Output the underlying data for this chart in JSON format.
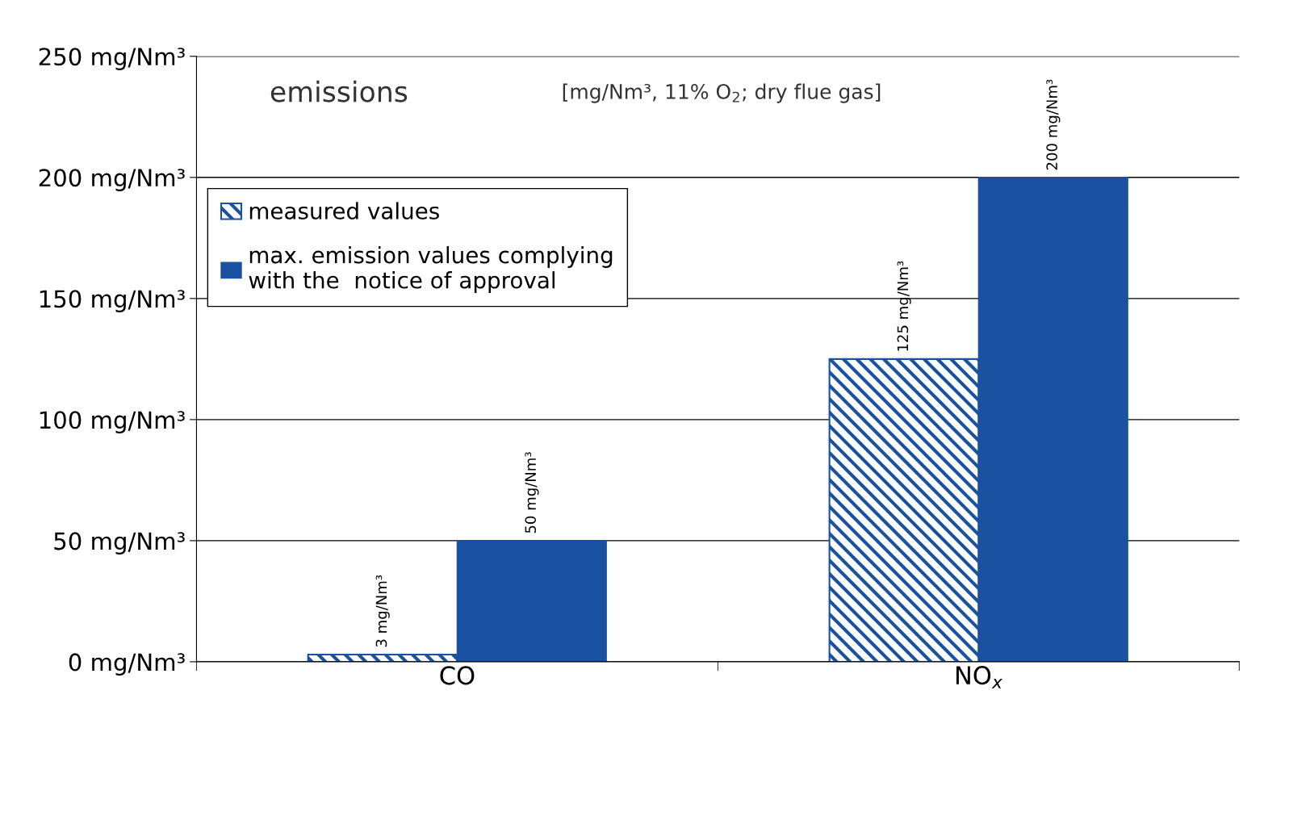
{
  "chart_data": {
    "type": "bar",
    "title": "emissions",
    "subtitle": "[mg/Nm³, 11% O$_{2}$; dry flue gas]",
    "categories": [
      "CO",
      "NO$_{x}$"
    ],
    "series": [
      {
        "name": "measured values",
        "color": "#1a51a0",
        "values": [
          3,
          125
        ],
        "value_labels": [
          "3 mg/Nm³",
          "125 mg/Nm³"
        ]
      },
      {
        "name": "max. emission values complying\nwith the  notice of approval",
        "color": "#1a51a0",
        "values": [
          50,
          200
        ],
        "value_labels": [
          "50 mg/Nm³",
          "200 mg/Nm³"
        ]
      }
    ],
    "ylim": [
      0,
      250
    ],
    "yticks": [
      {
        "value": 0,
        "label": "0 mg/Nm³"
      },
      {
        "value": 50,
        "label": "50 mg/Nm³"
      },
      {
        "value": 100,
        "label": "100 mg/Nm³"
      },
      {
        "value": 150,
        "label": "150 mg/Nm³"
      },
      {
        "value": 200,
        "label": "200 mg/Nm³"
      },
      {
        "value": 250,
        "label": "250 mg/Nm³"
      }
    ],
    "grid": "y",
    "legend": "top left"
  }
}
